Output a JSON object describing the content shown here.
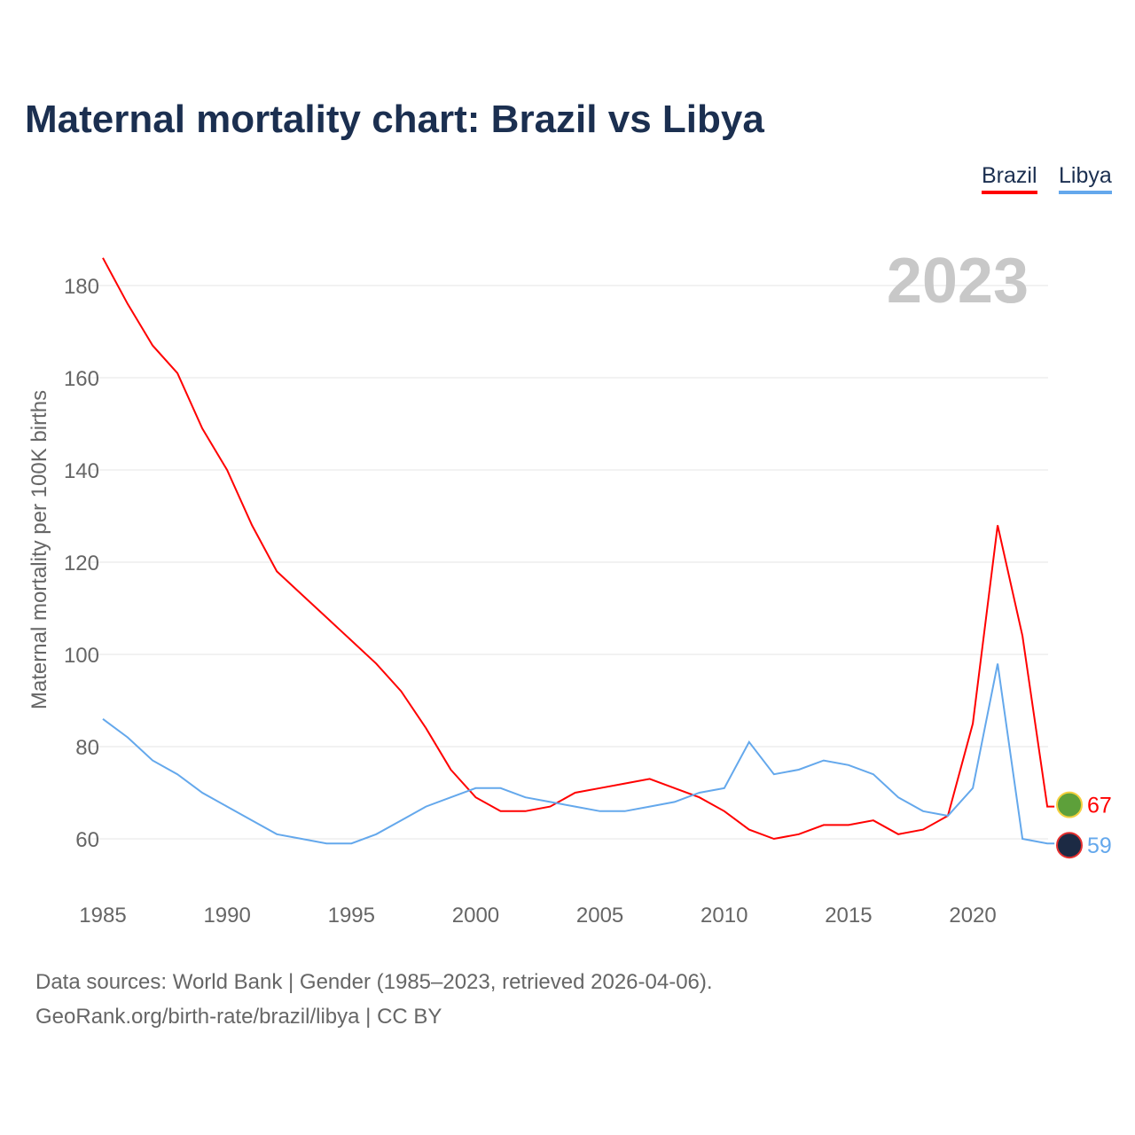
{
  "title": "Maternal mortality chart: Brazil vs Libya",
  "year_label": "2023",
  "source_line1": "Data sources: World Bank | Gender (1985–2023, retrieved 2026-04-06).",
  "source_line2": "GeoRank.org/birth-rate/brazil/libya | CC BY",
  "chart_data": {
    "type": "line",
    "title": "Maternal mortality chart: Brazil vs Libya",
    "ylabel": "Maternal mortality per 100K births",
    "xlabel": "",
    "xlim": [
      1985,
      2023
    ],
    "ylim": [
      50,
      190
    ],
    "yticks": [
      60,
      80,
      100,
      120,
      140,
      160,
      180
    ],
    "xticks": [
      1985,
      1990,
      1995,
      2000,
      2005,
      2010,
      2015,
      2020
    ],
    "grid": true,
    "legend": "top-right",
    "x": [
      1985,
      1986,
      1987,
      1988,
      1989,
      1990,
      1991,
      1992,
      1993,
      1994,
      1995,
      1996,
      1997,
      1998,
      1999,
      2000,
      2001,
      2002,
      2003,
      2004,
      2005,
      2006,
      2007,
      2008,
      2009,
      2010,
      2011,
      2012,
      2013,
      2014,
      2015,
      2016,
      2017,
      2018,
      2019,
      2020,
      2021,
      2022,
      2023
    ],
    "series": [
      {
        "name": "Brazil",
        "color": "#ff0000",
        "end_label": "67",
        "values": [
          186,
          176,
          167,
          161,
          149,
          140,
          128,
          118,
          113,
          108,
          103,
          98,
          92,
          84,
          75,
          69,
          66,
          66,
          67,
          70,
          71,
          72,
          73,
          71,
          69,
          66,
          62,
          60,
          61,
          63,
          63,
          64,
          61,
          62,
          65,
          85,
          128,
          104,
          67
        ]
      },
      {
        "name": "Libya",
        "color": "#64a8ec",
        "end_label": "59",
        "values": [
          86,
          82,
          77,
          74,
          70,
          67,
          64,
          61,
          60,
          59,
          59,
          61,
          64,
          67,
          69,
          71,
          71,
          69,
          68,
          67,
          66,
          66,
          67,
          68,
          70,
          71,
          81,
          74,
          75,
          77,
          76,
          74,
          69,
          66,
          65,
          71,
          98,
          60,
          59
        ]
      }
    ]
  }
}
